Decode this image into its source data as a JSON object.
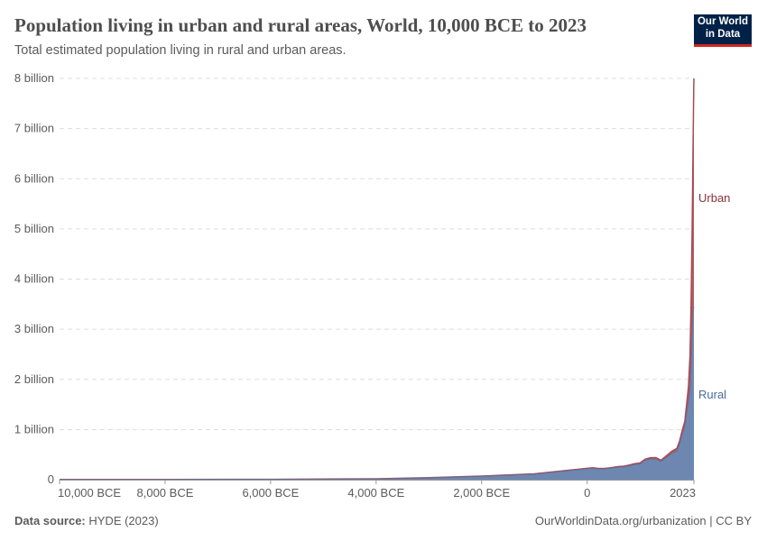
{
  "header": {
    "title": "Population living in urban and rural areas, World, 10,000 BCE to 2023",
    "subtitle": "Total estimated population living in rural and urban areas.",
    "logo_line1": "Our World",
    "logo_line2": "in Data"
  },
  "footer": {
    "source_label": "Data source:",
    "source_value": "HYDE (2023)",
    "url": "OurWorldinData.org/urbanization | CC BY"
  },
  "colors": {
    "rural": "#6d87b0",
    "urban": "#b35a62",
    "urban_line": "#a84a52",
    "rural_label": "#4c6a9c",
    "urban_label": "#883039"
  },
  "chart_data": {
    "type": "area",
    "stacked": true,
    "xlim": [
      -10000,
      2023
    ],
    "ylim": [
      0,
      8000000000
    ],
    "grid": true,
    "x_ticks": [
      {
        "value": -10000,
        "label": "10,000 BCE"
      },
      {
        "value": -8000,
        "label": "8,000 BCE"
      },
      {
        "value": -6000,
        "label": "6,000 BCE"
      },
      {
        "value": -4000,
        "label": "4,000 BCE"
      },
      {
        "value": -2000,
        "label": "2,000 BCE"
      },
      {
        "value": 0,
        "label": "0"
      },
      {
        "value": 2023,
        "label": "2023"
      }
    ],
    "y_ticks": [
      {
        "value": 0,
        "label": "0"
      },
      {
        "value": 1000000000,
        "label": "1 billion"
      },
      {
        "value": 2000000000,
        "label": "2 billion"
      },
      {
        "value": 3000000000,
        "label": "3 billion"
      },
      {
        "value": 4000000000,
        "label": "4 billion"
      },
      {
        "value": 5000000000,
        "label": "5 billion"
      },
      {
        "value": 6000000000,
        "label": "6 billion"
      },
      {
        "value": 7000000000,
        "label": "7 billion"
      },
      {
        "value": 8000000000,
        "label": "8 billion"
      }
    ],
    "x": [
      -10000,
      -8000,
      -6000,
      -4000,
      -3000,
      -2000,
      -1000,
      0,
      100,
      200,
      300,
      400,
      500,
      600,
      700,
      800,
      900,
      1000,
      1100,
      1200,
      1300,
      1400,
      1500,
      1600,
      1700,
      1750,
      1800,
      1850,
      1900,
      1920,
      1950,
      1970,
      1990,
      2000,
      2010,
      2020,
      2023
    ],
    "series": [
      {
        "name": "Rural",
        "values": [
          4500000,
          5000000,
          7000000,
          18000000,
          40000000,
          70000000,
          110000000,
          215000000,
          225000000,
          215000000,
          210000000,
          220000000,
          235000000,
          250000000,
          255000000,
          275000000,
          300000000,
          310000000,
          385000000,
          410000000,
          410000000,
          360000000,
          440000000,
          520000000,
          570000000,
          700000000,
          900000000,
          1050000000,
          1420000000,
          1550000000,
          1750000000,
          2200000000,
          2800000000,
          3100000000,
          3350000000,
          3430000000,
          3450000000
        ]
      },
      {
        "name": "Urban",
        "values": [
          0,
          0,
          0,
          100000,
          500000,
          2000000,
          6000000,
          13000000,
          14000000,
          13000000,
          12000000,
          12000000,
          13000000,
          14000000,
          15000000,
          17000000,
          19000000,
          22000000,
          25000000,
          28000000,
          30000000,
          28000000,
          35000000,
          45000000,
          55000000,
          65000000,
          75000000,
          110000000,
          230000000,
          310000000,
          750000000,
          1350000000,
          2250000000,
          2850000000,
          3550000000,
          4400000000,
          4550000000
        ]
      }
    ]
  }
}
